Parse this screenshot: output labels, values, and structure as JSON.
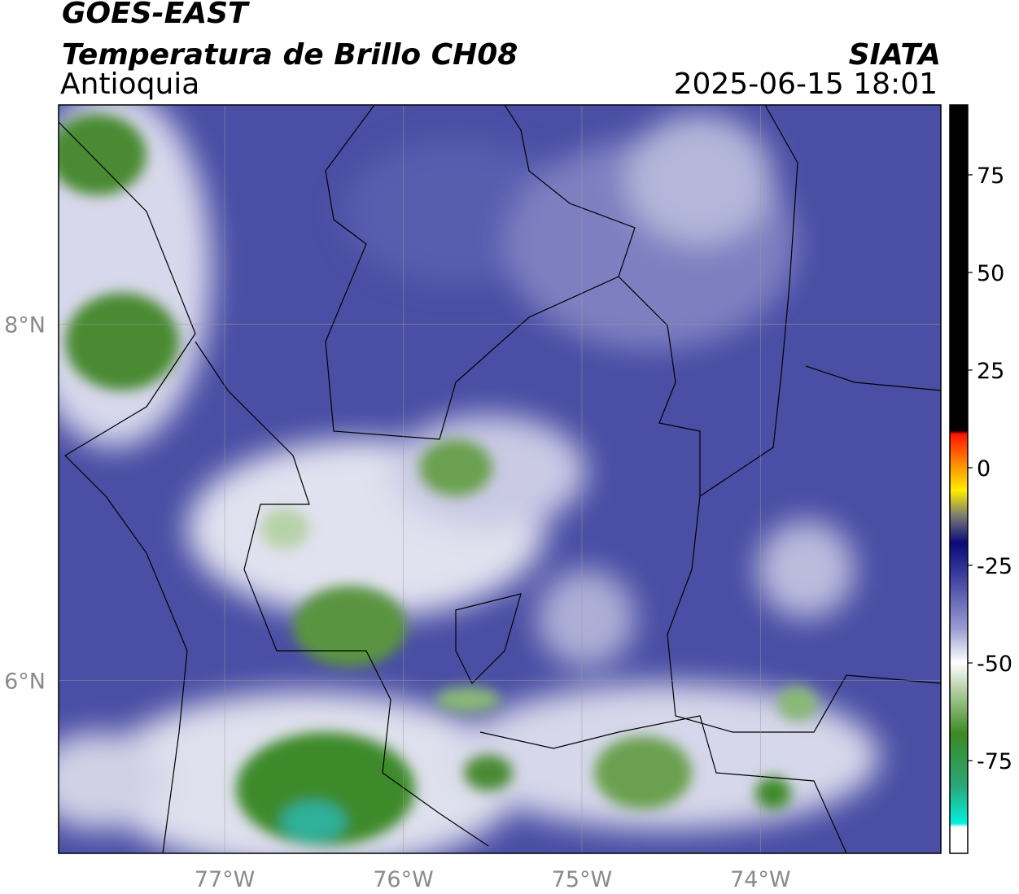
{
  "header": {
    "title": "GOES-EAST",
    "subtitle": "Temperatura de Brillo CH08",
    "region": "Antioquia",
    "source": "SIATA",
    "datetime": "2025-06-15 18:01"
  },
  "map": {
    "xlim": [
      -77.93,
      -72.99
    ],
    "ylim": [
      5.03,
      9.23
    ],
    "xticks": [
      {
        "value": -77,
        "label": "77°W"
      },
      {
        "value": -76,
        "label": "76°W"
      },
      {
        "value": -75,
        "label": "75°W"
      },
      {
        "value": -74,
        "label": "74°W"
      }
    ],
    "yticks": [
      {
        "value": 8,
        "label": "8°N"
      },
      {
        "value": 6,
        "label": "6°N"
      }
    ],
    "grid": true
  },
  "colorbar": {
    "lim": [
      -98.75,
      92.9
    ],
    "ticks": [
      75,
      50,
      25,
      0,
      -25,
      -50,
      -75
    ]
  }
}
